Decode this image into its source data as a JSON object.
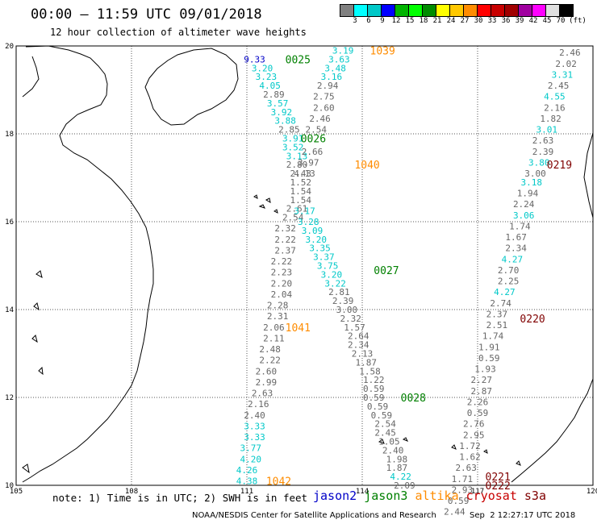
{
  "header": {
    "title": "00:00 – 11:59 UTC 09/01/2018",
    "subtitle": "12 hour collection of altimeter wave heights"
  },
  "colorbar": {
    "colors": [
      "#808080",
      "#00ffff",
      "#00c8c8",
      "#0000ff",
      "#00b400",
      "#00ff00",
      "#008c00",
      "#ffff00",
      "#ffc800",
      "#ff8c00",
      "#ff0000",
      "#c80000",
      "#a00000",
      "#a000a0",
      "#ff00ff",
      "#e0e0e0",
      "#000000"
    ],
    "labels": [
      "3",
      "6",
      "9",
      "12",
      "15",
      "18",
      "21",
      "24",
      "27",
      "30",
      "33",
      "36",
      "39",
      "42",
      "45",
      "70"
    ],
    "unit": "(ft)"
  },
  "axes": {
    "lat_labels": [
      "20",
      "18",
      "16",
      "14",
      "12",
      "10"
    ],
    "lon_labels": [
      "105",
      "108",
      "111",
      "114",
      "117",
      "120"
    ]
  },
  "series_colors": {
    "jason2": "#0000c8",
    "jason3": "#008000",
    "altika": "#ff8c00",
    "cryosat": "#c80000",
    "s3a": "#800000",
    "gray": "#666666",
    "cyan": "#00c8c8"
  },
  "passes": [
    {
      "id": "1039",
      "sat": "altika",
      "lon": 114.2,
      "lat": 19.9
    },
    {
      "id": "0025",
      "sat": "jason3",
      "lon": 112.0,
      "lat": 19.7
    },
    {
      "id": "0026",
      "sat": "jason3",
      "lon": 112.4,
      "lat": 17.9
    },
    {
      "id": "1040",
      "sat": "altika",
      "lon": 113.8,
      "lat": 17.3
    },
    {
      "id": "0219",
      "sat": "s3a",
      "lon": 118.8,
      "lat": 17.3
    },
    {
      "id": "0027",
      "sat": "jason3",
      "lon": 114.3,
      "lat": 14.9
    },
    {
      "id": "1041",
      "sat": "altika",
      "lon": 112.0,
      "lat": 13.6
    },
    {
      "id": "0220",
      "sat": "s3a",
      "lon": 118.1,
      "lat": 13.8
    },
    {
      "id": "0028",
      "sat": "jason3",
      "lon": 115.0,
      "lat": 12.0
    },
    {
      "id": "1042",
      "sat": "altika",
      "lon": 111.5,
      "lat": 10.1
    },
    {
      "id": "0221",
      "sat": "s3a",
      "lon": 117.2,
      "lat": 10.2
    },
    {
      "id": "0222",
      "sat": "s3a",
      "lon": 117.2,
      "lat": 10.0
    }
  ],
  "tracks": [
    {
      "name": "jason3-0025",
      "points": [
        {
          "v": "9.33",
          "c": "jason2",
          "lon": 111.2,
          "lat": 19.7
        },
        {
          "v": "3.20",
          "c": "cyan",
          "lon": 111.4,
          "lat": 19.5
        },
        {
          "v": "3.23",
          "c": "cyan",
          "lon": 111.5,
          "lat": 19.3
        },
        {
          "v": "4.05",
          "c": "cyan",
          "lon": 111.6,
          "lat": 19.1
        },
        {
          "v": "2.89",
          "c": "gray",
          "lon": 111.7,
          "lat": 18.9
        },
        {
          "v": "3.57",
          "c": "cyan",
          "lon": 111.8,
          "lat": 18.7
        },
        {
          "v": "3.92",
          "c": "cyan",
          "lon": 111.9,
          "lat": 18.5
        },
        {
          "v": "3.88",
          "c": "cyan",
          "lon": 112.0,
          "lat": 18.3
        },
        {
          "v": "2.85",
          "c": "gray",
          "lon": 112.1,
          "lat": 18.1
        },
        {
          "v": "3.91",
          "c": "cyan",
          "lon": 112.2,
          "lat": 17.9
        },
        {
          "v": "3.52",
          "c": "cyan",
          "lon": 112.2,
          "lat": 17.7
        },
        {
          "v": "3.13",
          "c": "cyan",
          "lon": 112.3,
          "lat": 17.5
        },
        {
          "v": "2.80",
          "c": "gray",
          "lon": 112.3,
          "lat": 17.3
        },
        {
          "v": "2.43",
          "c": "gray",
          "lon": 112.4,
          "lat": 17.1
        },
        {
          "v": "1.52",
          "c": "gray",
          "lon": 112.4,
          "lat": 16.9
        },
        {
          "v": "1.54",
          "c": "gray",
          "lon": 112.4,
          "lat": 16.7
        },
        {
          "v": "1.54",
          "c": "gray",
          "lon": 112.4,
          "lat": 16.5
        },
        {
          "v": "2.61",
          "c": "gray",
          "lon": 112.3,
          "lat": 16.3
        },
        {
          "v": "2.54",
          "c": "gray",
          "lon": 112.2,
          "lat": 16.1
        },
        {
          "v": "2.32",
          "c": "gray",
          "lon": 112.0,
          "lat": 15.85
        },
        {
          "v": "2.22",
          "c": "gray",
          "lon": 112.0,
          "lat": 15.6
        },
        {
          "v": "2.37",
          "c": "gray",
          "lon": 112.0,
          "lat": 15.35
        },
        {
          "v": "2.22",
          "c": "gray",
          "lon": 111.9,
          "lat": 15.1
        },
        {
          "v": "2.23",
          "c": "gray",
          "lon": 111.9,
          "lat": 14.85
        },
        {
          "v": "2.20",
          "c": "gray",
          "lon": 111.9,
          "lat": 14.6
        },
        {
          "v": "2.04",
          "c": "gray",
          "lon": 111.9,
          "lat": 14.35
        },
        {
          "v": "2.28",
          "c": "gray",
          "lon": 111.8,
          "lat": 14.1
        },
        {
          "v": "2.31",
          "c": "gray",
          "lon": 111.8,
          "lat": 13.85
        },
        {
          "v": "2.06",
          "c": "gray",
          "lon": 111.7,
          "lat": 13.6
        },
        {
          "v": "2.11",
          "c": "gray",
          "lon": 111.7,
          "lat": 13.35
        },
        {
          "v": "2.48",
          "c": "gray",
          "lon": 111.6,
          "lat": 13.1
        },
        {
          "v": "2.22",
          "c": "gray",
          "lon": 111.6,
          "lat": 12.85
        },
        {
          "v": "2.60",
          "c": "gray",
          "lon": 111.5,
          "lat": 12.6
        },
        {
          "v": "2.99",
          "c": "gray",
          "lon": 111.5,
          "lat": 12.35
        },
        {
          "v": "2.63",
          "c": "gray",
          "lon": 111.4,
          "lat": 12.1
        },
        {
          "v": "2.16",
          "c": "gray",
          "lon": 111.3,
          "lat": 11.85
        },
        {
          "v": "2.40",
          "c": "gray",
          "lon": 111.2,
          "lat": 11.6
        },
        {
          "v": "3.33",
          "c": "cyan",
          "lon": 111.2,
          "lat": 11.35
        },
        {
          "v": "3.33",
          "c": "cyan",
          "lon": 111.2,
          "lat": 11.1
        },
        {
          "v": "3.77",
          "c": "cyan",
          "lon": 111.1,
          "lat": 10.85
        },
        {
          "v": "4.20",
          "c": "cyan",
          "lon": 111.1,
          "lat": 10.6
        },
        {
          "v": "4.26",
          "c": "cyan",
          "lon": 111.0,
          "lat": 10.35
        },
        {
          "v": "4.38",
          "c": "cyan",
          "lon": 111.0,
          "lat": 10.1
        }
      ]
    },
    {
      "name": "altika-1039",
      "points": [
        {
          "v": "3.19",
          "c": "cyan",
          "lon": 113.5,
          "lat": 19.9
        },
        {
          "v": "3.63",
          "c": "cyan",
          "lon": 113.4,
          "lat": 19.7
        },
        {
          "v": "3.48",
          "c": "cyan",
          "lon": 113.3,
          "lat": 19.5
        },
        {
          "v": "3.16",
          "c": "cyan",
          "lon": 113.2,
          "lat": 19.3
        },
        {
          "v": "2.94",
          "c": "gray",
          "lon": 113.1,
          "lat": 19.1
        },
        {
          "v": "2.75",
          "c": "gray",
          "lon": 113.0,
          "lat": 18.85
        },
        {
          "v": "2.60",
          "c": "gray",
          "lon": 113.0,
          "lat": 18.6
        },
        {
          "v": "2.46",
          "c": "gray",
          "lon": 112.9,
          "lat": 18.35
        },
        {
          "v": "2.54",
          "c": "gray",
          "lon": 112.8,
          "lat": 18.1
        },
        {
          "v": "2.66",
          "c": "gray",
          "lon": 112.7,
          "lat": 17.6
        },
        {
          "v": "3.97",
          "c": "gray",
          "lon": 112.6,
          "lat": 17.35
        },
        {
          "v": "4.13",
          "c": "gray",
          "lon": 112.5,
          "lat": 17.1
        },
        {
          "v": "3.17",
          "c": "cyan",
          "lon": 112.5,
          "lat": 16.25
        },
        {
          "v": "3.28",
          "c": "cyan",
          "lon": 112.6,
          "lat": 16.0
        },
        {
          "v": "3.09",
          "c": "cyan",
          "lon": 112.7,
          "lat": 15.8
        },
        {
          "v": "3.20",
          "c": "cyan",
          "lon": 112.8,
          "lat": 15.6
        },
        {
          "v": "3.35",
          "c": "cyan",
          "lon": 112.9,
          "lat": 15.4
        },
        {
          "v": "3.37",
          "c": "cyan",
          "lon": 113.0,
          "lat": 15.2
        },
        {
          "v": "3.75",
          "c": "cyan",
          "lon": 113.1,
          "lat": 15.0
        },
        {
          "v": "3.20",
          "c": "cyan",
          "lon": 113.2,
          "lat": 14.8
        },
        {
          "v": "3.22",
          "c": "cyan",
          "lon": 113.3,
          "lat": 14.6
        },
        {
          "v": "2.81",
          "c": "gray",
          "lon": 113.4,
          "lat": 14.4
        },
        {
          "v": "2.39",
          "c": "gray",
          "lon": 113.5,
          "lat": 14.2
        },
        {
          "v": "3.00",
          "c": "gray",
          "lon": 113.6,
          "lat": 14.0
        },
        {
          "v": "2.32",
          "c": "gray",
          "lon": 113.7,
          "lat": 13.8
        },
        {
          "v": "1.57",
          "c": "gray",
          "lon": 113.8,
          "lat": 13.6
        },
        {
          "v": "2.64",
          "c": "gray",
          "lon": 113.9,
          "lat": 13.4
        },
        {
          "v": "2.34",
          "c": "gray",
          "lon": 113.9,
          "lat": 13.2
        },
        {
          "v": "2.13",
          "c": "gray",
          "lon": 114.0,
          "lat": 13.0
        },
        {
          "v": "1.87",
          "c": "gray",
          "lon": 114.1,
          "lat": 12.8
        },
        {
          "v": "1.58",
          "c": "gray",
          "lon": 114.2,
          "lat": 12.6
        },
        {
          "v": "1.22",
          "c": "gray",
          "lon": 114.3,
          "lat": 12.4
        },
        {
          "v": "0.59",
          "c": "gray",
          "lon": 114.3,
          "lat": 12.2
        },
        {
          "v": "0.59",
          "c": "gray",
          "lon": 114.3,
          "lat": 12.0
        },
        {
          "v": "0.59",
          "c": "gray",
          "lon": 114.4,
          "lat": 11.8
        },
        {
          "v": "0.59",
          "c": "gray",
          "lon": 114.5,
          "lat": 11.6
        },
        {
          "v": "2.54",
          "c": "gray",
          "lon": 114.6,
          "lat": 11.4
        },
        {
          "v": "2.45",
          "c": "gray",
          "lon": 114.6,
          "lat": 11.2
        },
        {
          "v": "1.05",
          "c": "gray",
          "lon": 114.7,
          "lat": 11.0
        },
        {
          "v": "2.40",
          "c": "gray",
          "lon": 114.8,
          "lat": 10.8
        },
        {
          "v": "1.98",
          "c": "gray",
          "lon": 114.9,
          "lat": 10.6
        },
        {
          "v": "1.87",
          "c": "gray",
          "lon": 114.9,
          "lat": 10.4
        },
        {
          "v": "4.22",
          "c": "cyan",
          "lon": 115.0,
          "lat": 10.2
        },
        {
          "v": "2.09",
          "c": "gray",
          "lon": 115.1,
          "lat": 10.0
        }
      ]
    },
    {
      "name": "s3a-0219",
      "points": [
        {
          "v": "2.46",
          "c": "gray",
          "lon": 119.4,
          "lat": 19.85
        },
        {
          "v": "2.02",
          "c": "gray",
          "lon": 119.3,
          "lat": 19.6
        },
        {
          "v": "3.31",
          "c": "cyan",
          "lon": 119.2,
          "lat": 19.35
        },
        {
          "v": "2.45",
          "c": "gray",
          "lon": 119.1,
          "lat": 19.1
        },
        {
          "v": "4.55",
          "c": "cyan",
          "lon": 119.0,
          "lat": 18.85
        },
        {
          "v": "2.16",
          "c": "gray",
          "lon": 119.0,
          "lat": 18.6
        },
        {
          "v": "1.82",
          "c": "gray",
          "lon": 118.9,
          "lat": 18.35
        },
        {
          "v": "3.01",
          "c": "cyan",
          "lon": 118.8,
          "lat": 18.1
        },
        {
          "v": "2.63",
          "c": "gray",
          "lon": 118.7,
          "lat": 17.85
        },
        {
          "v": "2.39",
          "c": "gray",
          "lon": 118.7,
          "lat": 17.6
        },
        {
          "v": "3.80",
          "c": "cyan",
          "lon": 118.6,
          "lat": 17.35
        },
        {
          "v": "3.00",
          "c": "gray",
          "lon": 118.5,
          "lat": 17.1
        },
        {
          "v": "3.18",
          "c": "cyan",
          "lon": 118.4,
          "lat": 16.9
        },
        {
          "v": "1.94",
          "c": "gray",
          "lon": 118.3,
          "lat": 16.65
        },
        {
          "v": "2.24",
          "c": "gray",
          "lon": 118.2,
          "lat": 16.4
        },
        {
          "v": "3.06",
          "c": "cyan",
          "lon": 118.2,
          "lat": 16.15
        },
        {
          "v": "1.74",
          "c": "gray",
          "lon": 118.1,
          "lat": 15.9
        },
        {
          "v": "1.67",
          "c": "gray",
          "lon": 118.0,
          "lat": 15.65
        },
        {
          "v": "2.34",
          "c": "gray",
          "lon": 118.0,
          "lat": 15.4
        },
        {
          "v": "4.27",
          "c": "cyan",
          "lon": 117.9,
          "lat": 15.15
        },
        {
          "v": "2.70",
          "c": "gray",
          "lon": 117.8,
          "lat": 14.9
        },
        {
          "v": "2.25",
          "c": "gray",
          "lon": 117.8,
          "lat": 14.65
        },
        {
          "v": "4.27",
          "c": "cyan",
          "lon": 117.7,
          "lat": 14.4
        },
        {
          "v": "2.74",
          "c": "gray",
          "lon": 117.6,
          "lat": 14.15
        },
        {
          "v": "2.37",
          "c": "gray",
          "lon": 117.5,
          "lat": 13.9
        },
        {
          "v": "2.51",
          "c": "gray",
          "lon": 117.5,
          "lat": 13.65
        },
        {
          "v": "1.74",
          "c": "gray",
          "lon": 117.4,
          "lat": 13.4
        },
        {
          "v": "1.91",
          "c": "gray",
          "lon": 117.3,
          "lat": 13.15
        },
        {
          "v": "0.59",
          "c": "gray",
          "lon": 117.3,
          "lat": 12.9
        },
        {
          "v": "1.93",
          "c": "gray",
          "lon": 117.2,
          "lat": 12.65
        },
        {
          "v": "2.27",
          "c": "gray",
          "lon": 117.1,
          "lat": 12.4
        },
        {
          "v": "2.87",
          "c": "gray",
          "lon": 117.1,
          "lat": 12.15
        },
        {
          "v": "2.26",
          "c": "gray",
          "lon": 117.0,
          "lat": 11.9
        },
        {
          "v": "0.59",
          "c": "gray",
          "lon": 117.0,
          "lat": 11.65
        },
        {
          "v": "2.76",
          "c": "gray",
          "lon": 116.9,
          "lat": 11.4
        },
        {
          "v": "2.95",
          "c": "gray",
          "lon": 116.9,
          "lat": 11.15
        },
        {
          "v": "1.72",
          "c": "gray",
          "lon": 116.8,
          "lat": 10.9
        },
        {
          "v": "1.62",
          "c": "gray",
          "lon": 116.8,
          "lat": 10.65
        },
        {
          "v": "2.63",
          "c": "gray",
          "lon": 116.7,
          "lat": 10.4
        },
        {
          "v": "1.71",
          "c": "gray",
          "lon": 116.6,
          "lat": 10.15
        },
        {
          "v": "2.93",
          "c": "gray",
          "lon": 116.6,
          "lat": 9.9
        },
        {
          "v": "0.59",
          "c": "gray",
          "lon": 116.5,
          "lat": 9.65
        },
        {
          "v": "2.44",
          "c": "gray",
          "lon": 116.4,
          "lat": 9.4
        }
      ]
    }
  ],
  "footer": {
    "note": "note: 1) Time is in UTC; 2) SWH is in feet",
    "legend": [
      {
        "label": "jason2",
        "c": "jason2"
      },
      {
        "label": "jason3",
        "c": "jason3"
      },
      {
        "label": "altika",
        "c": "altika"
      },
      {
        "label": "cryosat",
        "c": "cryosat"
      },
      {
        "label": "s3a",
        "c": "s3a"
      }
    ],
    "credit": "NOAA/NESDIS Center for Satellite Applications and Research",
    "timestamp": "Sep  2 12:27:17 UTC 2018"
  }
}
